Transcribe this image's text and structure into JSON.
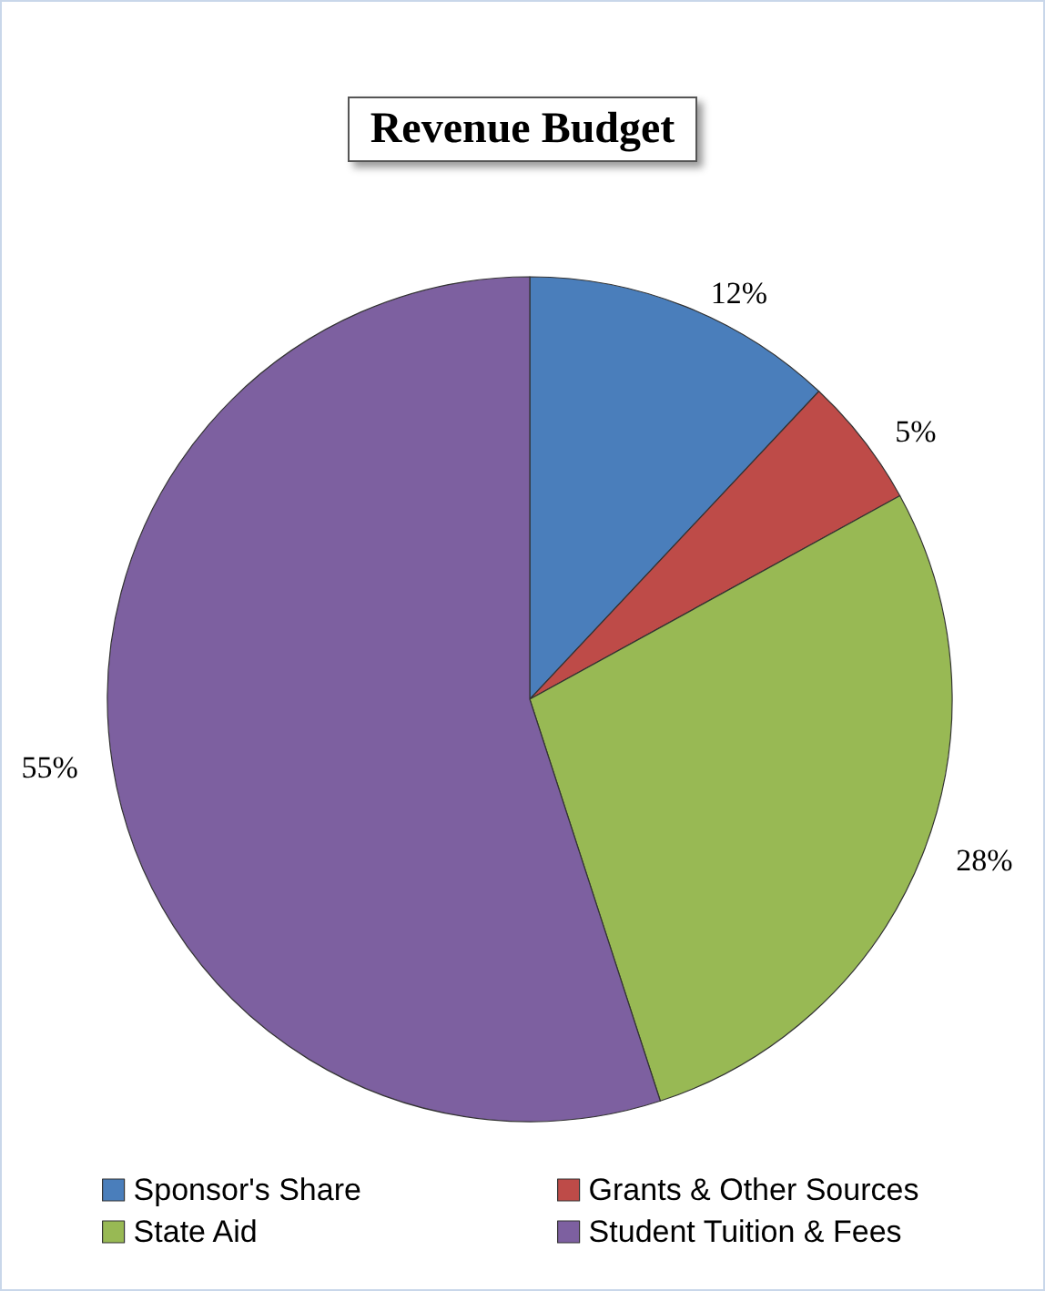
{
  "chart_data": {
    "type": "pie",
    "title": "Revenue Budget",
    "categories": [
      "Sponsor's Share",
      "Grants & Other Sources",
      "State Aid",
      "Student Tuition & Fees"
    ],
    "values": [
      12,
      5,
      28,
      55
    ],
    "colors": [
      "#4a7ebb",
      "#be4b48",
      "#98b954",
      "#7d60a0"
    ],
    "value_labels": [
      "12%",
      "5%",
      "28%",
      "55%"
    ],
    "legend": "bottom"
  }
}
